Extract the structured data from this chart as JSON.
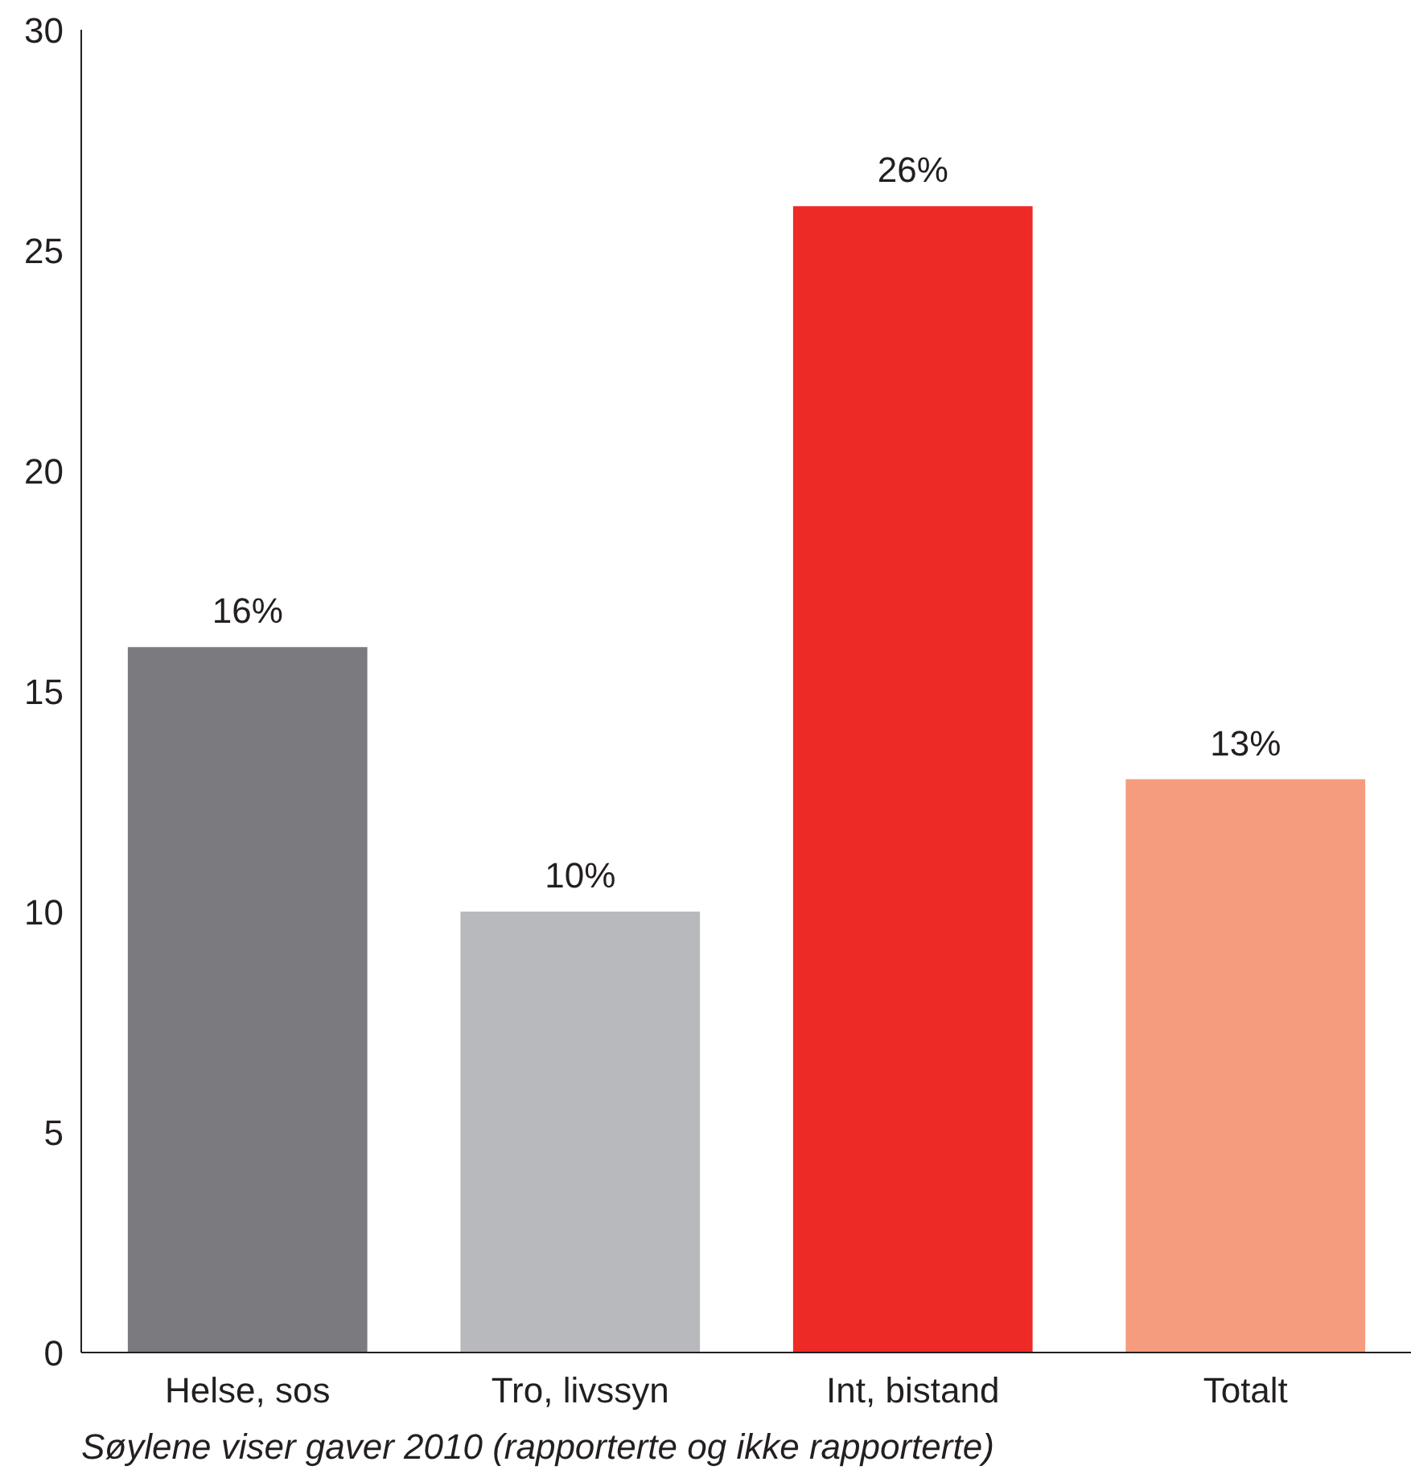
{
  "chart_data": {
    "type": "bar",
    "categories": [
      "Helse, sos",
      "Tro, livssyn",
      "Int, bistand",
      "Totalt"
    ],
    "values": [
      16,
      10,
      26,
      13
    ],
    "colors": [
      "#7b7b7f",
      "#b8b9bd",
      "#ee2a27",
      "#f49c7d"
    ],
    "value_labels": [
      "16%",
      "10%",
      "26%",
      "13%"
    ],
    "ylim": [
      0,
      30
    ],
    "yticks": [
      0,
      5,
      10,
      15,
      20,
      25,
      30
    ],
    "grid": false,
    "annotations": [
      "Søylene viser gaver 2010 (rapporterte og ikke rapporterte)"
    ]
  }
}
